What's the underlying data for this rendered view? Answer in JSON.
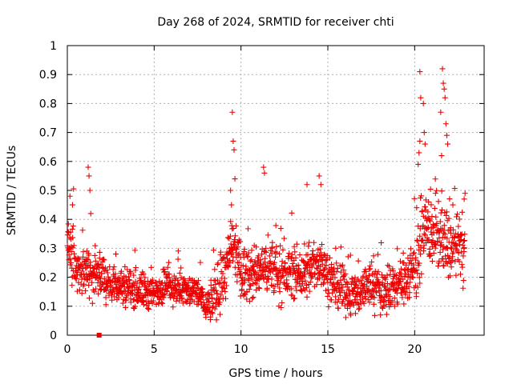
{
  "chart_data": {
    "type": "scatter",
    "title": "Day 268 of 2024, SRMTID for receiver chti",
    "xlabel": "GPS time / hours",
    "ylabel": "SRMTID / TECUs",
    "xlim": [
      0,
      24
    ],
    "ylim": [
      0,
      1
    ],
    "xticks": [
      0,
      5,
      10,
      15,
      20
    ],
    "yticks": [
      0,
      0.1,
      0.2,
      0.3,
      0.4,
      0.5,
      0.6,
      0.7,
      0.8,
      0.9,
      1
    ],
    "xtick_labels": [
      "0",
      "5",
      "10",
      "15",
      "20"
    ],
    "ytick_labels": [
      "0",
      "0.1",
      "0.2",
      "0.3",
      "0.4",
      "0.5",
      "0.6",
      "0.7",
      "0.8",
      "0.9",
      "1"
    ],
    "grid": true,
    "marker": "+",
    "color": "#ee0000",
    "special_point": {
      "x": 1.83,
      "y": 0.0,
      "marker": "square"
    },
    "trend": [
      [
        0.0,
        0.31
      ],
      [
        0.5,
        0.24
      ],
      [
        1.0,
        0.22
      ],
      [
        1.5,
        0.2
      ],
      [
        2.0,
        0.2
      ],
      [
        2.5,
        0.18
      ],
      [
        3.0,
        0.17
      ],
      [
        3.5,
        0.17
      ],
      [
        4.0,
        0.16
      ],
      [
        4.5,
        0.15
      ],
      [
        5.0,
        0.14
      ],
      [
        5.5,
        0.17
      ],
      [
        6.0,
        0.17
      ],
      [
        6.5,
        0.16
      ],
      [
        7.0,
        0.15
      ],
      [
        7.5,
        0.15
      ],
      [
        8.0,
        0.1
      ],
      [
        8.5,
        0.13
      ],
      [
        9.0,
        0.2
      ],
      [
        9.5,
        0.3
      ],
      [
        10.0,
        0.22
      ],
      [
        10.5,
        0.2
      ],
      [
        11.0,
        0.22
      ],
      [
        11.5,
        0.24
      ],
      [
        12.0,
        0.22
      ],
      [
        12.5,
        0.2
      ],
      [
        13.0,
        0.22
      ],
      [
        13.5,
        0.2
      ],
      [
        14.0,
        0.22
      ],
      [
        14.5,
        0.26
      ],
      [
        15.0,
        0.21
      ],
      [
        15.5,
        0.16
      ],
      [
        16.0,
        0.15
      ],
      [
        16.5,
        0.14
      ],
      [
        17.0,
        0.16
      ],
      [
        17.5,
        0.18
      ],
      [
        18.0,
        0.15
      ],
      [
        18.5,
        0.16
      ],
      [
        19.0,
        0.17
      ],
      [
        19.5,
        0.2
      ],
      [
        20.0,
        0.24
      ],
      [
        20.5,
        0.34
      ],
      [
        21.0,
        0.36
      ],
      [
        21.5,
        0.33
      ],
      [
        22.0,
        0.3
      ],
      [
        22.5,
        0.3
      ],
      [
        22.9,
        0.28
      ]
    ],
    "spread": [
      [
        0,
        0.08
      ],
      [
        3,
        0.06
      ],
      [
        8,
        0.05
      ],
      [
        9,
        0.09
      ],
      [
        12,
        0.08
      ],
      [
        15,
        0.07
      ],
      [
        19,
        0.07
      ],
      [
        20,
        0.1
      ],
      [
        23,
        0.1
      ]
    ],
    "peaks": [
      {
        "x": 0.15,
        "y": 0.48
      },
      {
        "x": 0.3,
        "y": 0.45
      },
      {
        "x": 1.2,
        "y": 0.58
      },
      {
        "x": 1.25,
        "y": 0.55
      },
      {
        "x": 1.3,
        "y": 0.5
      },
      {
        "x": 1.35,
        "y": 0.42
      },
      {
        "x": 9.5,
        "y": 0.77
      },
      {
        "x": 9.55,
        "y": 0.67
      },
      {
        "x": 9.6,
        "y": 0.64
      },
      {
        "x": 9.65,
        "y": 0.54
      },
      {
        "x": 9.4,
        "y": 0.5
      },
      {
        "x": 9.45,
        "y": 0.45
      },
      {
        "x": 11.3,
        "y": 0.58
      },
      {
        "x": 11.35,
        "y": 0.56
      },
      {
        "x": 14.5,
        "y": 0.55
      },
      {
        "x": 14.6,
        "y": 0.52
      },
      {
        "x": 13.8,
        "y": 0.52
      },
      {
        "x": 20.3,
        "y": 0.91
      },
      {
        "x": 20.35,
        "y": 0.82
      },
      {
        "x": 20.5,
        "y": 0.8
      },
      {
        "x": 20.55,
        "y": 0.7
      },
      {
        "x": 20.6,
        "y": 0.66
      },
      {
        "x": 20.2,
        "y": 0.59
      },
      {
        "x": 20.25,
        "y": 0.63
      },
      {
        "x": 20.3,
        "y": 0.67
      },
      {
        "x": 21.6,
        "y": 0.92
      },
      {
        "x": 21.65,
        "y": 0.87
      },
      {
        "x": 21.7,
        "y": 0.85
      },
      {
        "x": 21.75,
        "y": 0.82
      },
      {
        "x": 21.5,
        "y": 0.77
      },
      {
        "x": 21.8,
        "y": 0.73
      },
      {
        "x": 21.85,
        "y": 0.69
      },
      {
        "x": 21.9,
        "y": 0.66
      },
      {
        "x": 21.55,
        "y": 0.62
      },
      {
        "x": 22.9,
        "y": 0.49
      },
      {
        "x": 22.85,
        "y": 0.47
      },
      {
        "x": 22.2,
        "y": 0.45
      },
      {
        "x": 21.2,
        "y": 0.49
      },
      {
        "x": 21.0,
        "y": 0.41
      },
      {
        "x": 20.8,
        "y": 0.46
      }
    ]
  }
}
